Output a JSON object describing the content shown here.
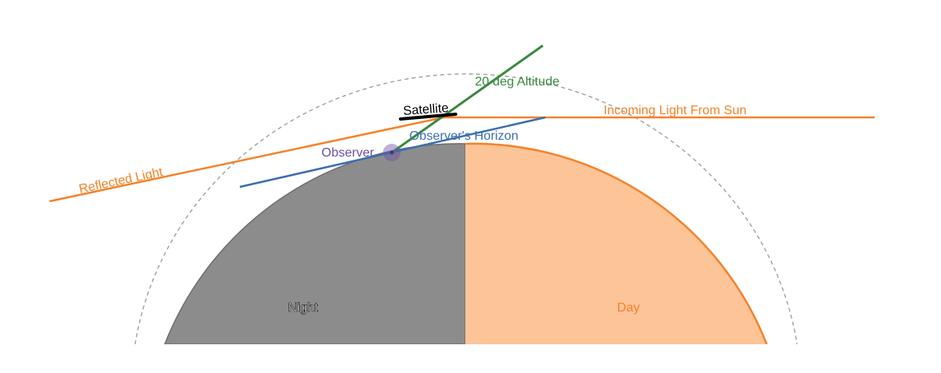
{
  "labels": {
    "satellite": "Satellite",
    "altitude": "20 deg Altitude",
    "incoming": "Incoming Light From Sun",
    "horizon": "Observer's Horizon",
    "observer": "Observer",
    "reflected": "Reflected Light",
    "night": "Night",
    "day": "Day"
  },
  "colors": {
    "night": "#8c8c8c",
    "day": "#fdc498",
    "sunlight": "#f5822a",
    "altitude": "#3a8a3f",
    "horizon": "#3a6eb0",
    "observer": "#6a51a3",
    "orbit": "#9a9a9a",
    "satellite": "#000000"
  }
}
